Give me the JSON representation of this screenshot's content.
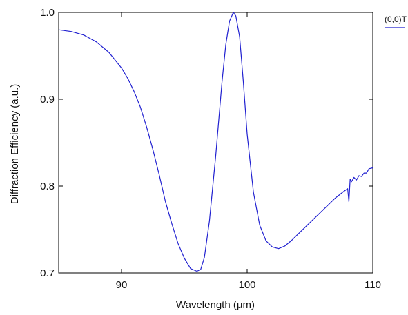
{
  "chart_data": {
    "type": "line",
    "title": "",
    "xlabel": "Wavelength (μm)",
    "ylabel": "Diffraction Efficiency (a.u.)",
    "xlim": [
      85,
      110
    ],
    "ylim": [
      0.7,
      1.0
    ],
    "xticks": [
      90,
      100,
      110
    ],
    "xtick_labels": [
      "90",
      "100",
      "110"
    ],
    "yticks": [
      0.7,
      0.8,
      0.9,
      1.0
    ],
    "ytick_labels": [
      "0.7",
      "0.8",
      "0.9",
      "1.0"
    ],
    "grid": false,
    "legend_position": "top-right",
    "line_color": "#2020d0",
    "series": [
      {
        "name": "(0,0)T",
        "x": [
          85,
          86,
          87,
          88,
          89,
          90,
          90.5,
          91,
          91.5,
          92,
          92.5,
          93,
          93.5,
          94,
          94.5,
          95,
          95.5,
          96,
          96.3,
          96.6,
          97,
          97.5,
          98,
          98.3,
          98.6,
          98.9,
          99.1,
          99.4,
          99.7,
          100,
          100.5,
          101,
          101.5,
          102,
          102.5,
          103,
          103.5,
          104,
          105,
          106,
          107,
          107.7,
          108,
          108.1,
          108.2,
          108.3,
          108.5,
          108.7,
          108.9,
          109.1,
          109.3,
          109.5,
          109.7,
          110
        ],
        "y": [
          0.98,
          0.978,
          0.974,
          0.966,
          0.954,
          0.936,
          0.924,
          0.909,
          0.891,
          0.868,
          0.842,
          0.813,
          0.782,
          0.757,
          0.734,
          0.717,
          0.705,
          0.702,
          0.704,
          0.718,
          0.76,
          0.835,
          0.92,
          0.963,
          0.99,
          1.0,
          0.996,
          0.972,
          0.92,
          0.86,
          0.793,
          0.755,
          0.737,
          0.73,
          0.728,
          0.731,
          0.737,
          0.744,
          0.758,
          0.772,
          0.786,
          0.794,
          0.797,
          0.782,
          0.808,
          0.805,
          0.81,
          0.807,
          0.812,
          0.811,
          0.815,
          0.815,
          0.82,
          0.821
        ]
      }
    ]
  }
}
